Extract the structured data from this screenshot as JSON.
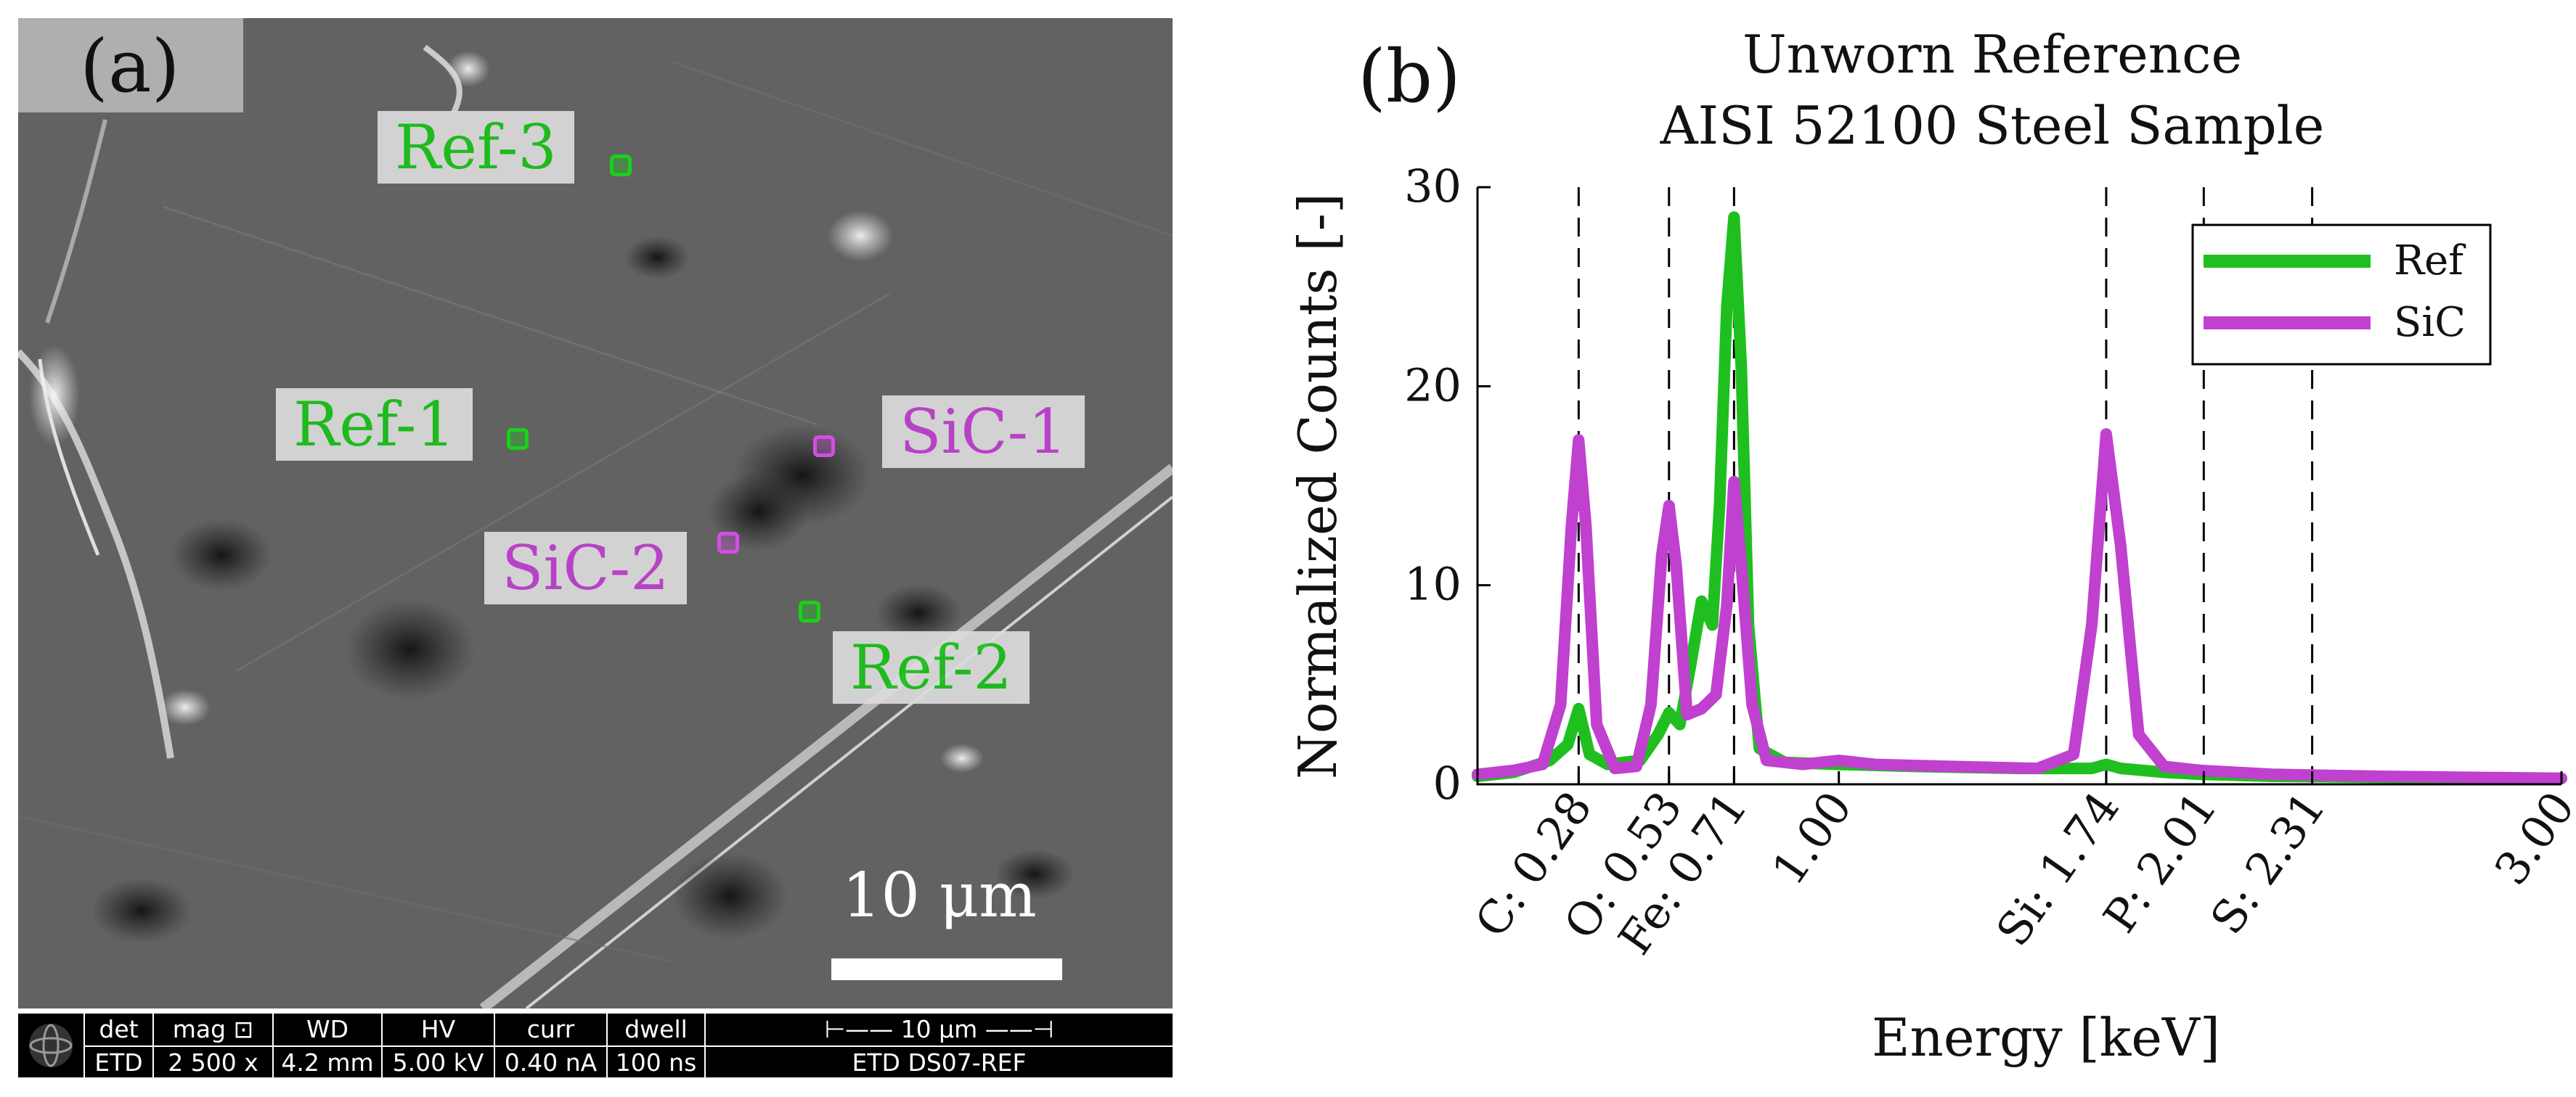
{
  "panel_a": {
    "label": "(a)",
    "markers": [
      {
        "name": "Ref-3",
        "series": "ref"
      },
      {
        "name": "Ref-1",
        "series": "ref"
      },
      {
        "name": "SiC-1",
        "series": "sic"
      },
      {
        "name": "SiC-2",
        "series": "sic"
      },
      {
        "name": "Ref-2",
        "series": "ref"
      }
    ],
    "scale_label": "10 μm",
    "info_bar": {
      "cells": [
        {
          "top": "det",
          "bottom": "ETD"
        },
        {
          "top": "mag ⊡",
          "bottom": "2 500 x"
        },
        {
          "top": "WD",
          "bottom": "4.2 mm"
        },
        {
          "top": "HV",
          "bottom": "5.00 kV"
        },
        {
          "top": "curr",
          "bottom": "0.40 nA"
        },
        {
          "top": "dwell",
          "bottom": "100 ns"
        },
        {
          "top": "⊢—— 10 μm ——⊣",
          "bottom": "ETD DS07-REF"
        }
      ]
    }
  },
  "panel_b": {
    "label": "(b)"
  },
  "colors": {
    "ref": "#1fbf1f",
    "sic": "#c040d0"
  },
  "chart_data": {
    "type": "line",
    "title": [
      "Unworn Reference",
      "AISI 52100 Steel Sample"
    ],
    "xlabel": "Energy [keV]",
    "ylabel": "Normalized Counts [-]",
    "xlim": [
      0,
      3.0
    ],
    "ylim": [
      0,
      30
    ],
    "yticks": [
      0,
      10,
      20,
      30
    ],
    "xticks": [
      {
        "value": 0.28,
        "label": "C: 0.28"
      },
      {
        "value": 0.53,
        "label": "O: 0.53"
      },
      {
        "value": 0.71,
        "label": "Fe: 0.71"
      },
      {
        "value": 1.0,
        "label": "1.00"
      },
      {
        "value": 1.74,
        "label": "Si: 1.74"
      },
      {
        "value": 2.01,
        "label": "P: 2.01"
      },
      {
        "value": 2.31,
        "label": "S: 2.31"
      },
      {
        "value": 3.0,
        "label": "3.00"
      }
    ],
    "reference_lines": [
      0.28,
      0.53,
      0.71,
      1.74,
      2.01,
      2.31
    ],
    "legend": {
      "position": "top-right",
      "entries": [
        "Ref",
        "SiC"
      ]
    },
    "series": [
      {
        "name": "Ref",
        "x": [
          0.0,
          0.1,
          0.2,
          0.25,
          0.28,
          0.31,
          0.36,
          0.45,
          0.5,
          0.53,
          0.56,
          0.59,
          0.62,
          0.65,
          0.67,
          0.69,
          0.71,
          0.73,
          0.75,
          0.78,
          0.85,
          1.0,
          1.2,
          1.5,
          1.7,
          1.74,
          1.78,
          1.9,
          2.0,
          2.2,
          2.5,
          3.0
        ],
        "values": [
          0.4,
          0.6,
          1.2,
          2.0,
          3.8,
          1.5,
          1.0,
          1.2,
          2.5,
          3.6,
          3.0,
          6.0,
          9.2,
          8.0,
          14.0,
          24.0,
          28.5,
          21.0,
          8.0,
          1.8,
          1.1,
          1.0,
          0.9,
          0.8,
          0.8,
          1.0,
          0.8,
          0.6,
          0.5,
          0.4,
          0.35,
          0.3
        ]
      },
      {
        "name": "SiC",
        "x": [
          0.0,
          0.1,
          0.18,
          0.23,
          0.26,
          0.28,
          0.3,
          0.33,
          0.38,
          0.44,
          0.48,
          0.51,
          0.53,
          0.55,
          0.58,
          0.62,
          0.66,
          0.69,
          0.71,
          0.73,
          0.76,
          0.8,
          0.9,
          1.0,
          1.1,
          1.3,
          1.55,
          1.65,
          1.7,
          1.74,
          1.78,
          1.83,
          1.9,
          2.0,
          2.2,
          2.5,
          3.0
        ],
        "values": [
          0.5,
          0.7,
          1.0,
          4.0,
          13.0,
          17.3,
          13.0,
          3.0,
          0.8,
          0.9,
          4.0,
          11.5,
          14.0,
          11.0,
          3.5,
          3.8,
          4.5,
          9.0,
          15.2,
          11.0,
          4.0,
          1.2,
          1.0,
          1.2,
          1.0,
          0.9,
          0.8,
          1.5,
          8.0,
          17.6,
          12.0,
          2.5,
          0.9,
          0.7,
          0.5,
          0.4,
          0.3
        ]
      }
    ]
  }
}
